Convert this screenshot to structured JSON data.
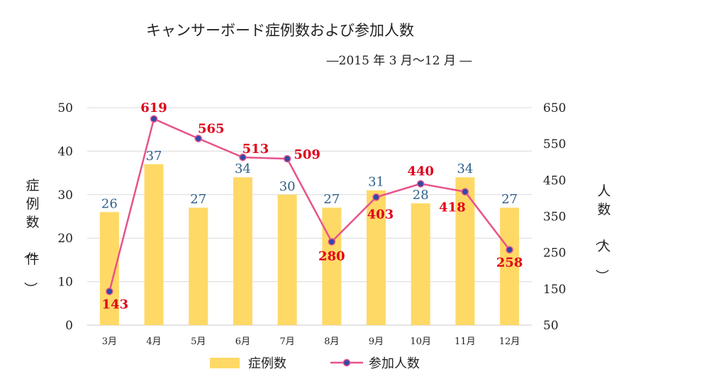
{
  "chart_data": {
    "type": "bar",
    "title": "キャンサーボード症例数および参加人数",
    "subtitle": "―2015 年 3 月～12 月 ―",
    "categories": [
      "3月",
      "4月",
      "5月",
      "6月",
      "7月",
      "8月",
      "9月",
      "10月",
      "11月",
      "12月"
    ],
    "series": [
      {
        "name": "症例数",
        "type": "bar",
        "axis": "left",
        "color": "#ffd966",
        "values": [
          26,
          37,
          27,
          34,
          30,
          27,
          31,
          28,
          34,
          27
        ]
      },
      {
        "name": "参加人数",
        "type": "line",
        "axis": "right",
        "color": "#e8528a",
        "marker_color": "#2e4aa8",
        "values": [
          143,
          619,
          565,
          513,
          509,
          280,
          403,
          440,
          418,
          258
        ]
      }
    ],
    "ylabel_left": "症例数（件）",
    "ylabel_right": "人数（人）",
    "ylim_left": [
      0,
      50
    ],
    "ylim_right": [
      50,
      650
    ],
    "yticks_left": [
      "0",
      "10",
      "20",
      "30",
      "40",
      "50"
    ],
    "yticks_right": [
      "50",
      "150",
      "250",
      "350",
      "450",
      "550",
      "650"
    ],
    "grid": true,
    "legend_position": "bottom"
  }
}
